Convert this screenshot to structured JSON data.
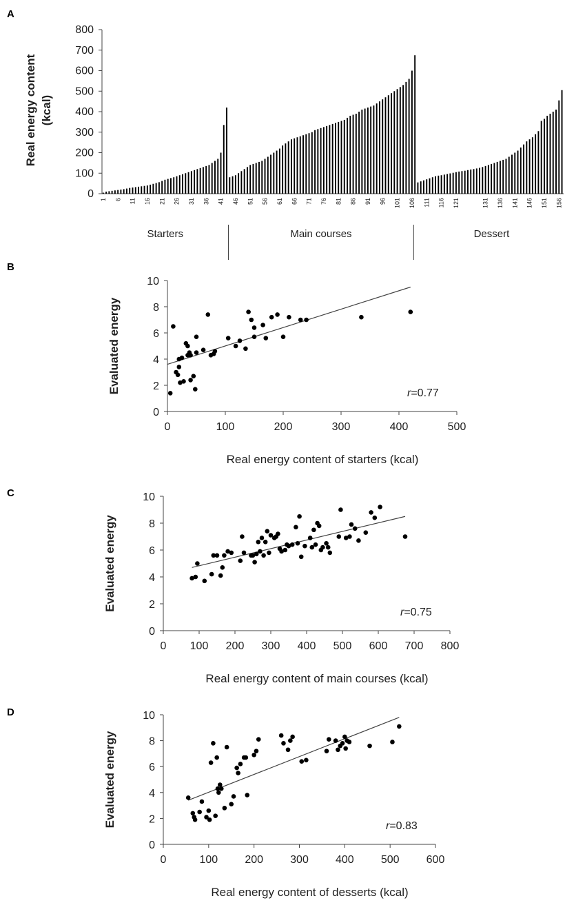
{
  "chart_data": [
    {
      "panel": "A",
      "type": "bar",
      "ylabel_line1": "Real energy content",
      "ylabel_line2": "(kcal)",
      "ylim": [
        0,
        800
      ],
      "yticks": [
        0,
        100,
        200,
        300,
        400,
        500,
        600,
        700,
        800
      ],
      "xtick_labels": [
        "1",
        "6",
        "11",
        "16",
        "21",
        "26",
        "31",
        "36",
        "41",
        "46",
        "51",
        "56",
        "61",
        "66",
        "71",
        "76",
        "81",
        "86",
        "91",
        "96",
        "101",
        "106",
        "111",
        "116",
        "121",
        "131",
        "136",
        "141",
        "146",
        "151",
        "156"
      ],
      "groups": [
        {
          "label": "Starters",
          "start": 1,
          "end": 43
        },
        {
          "label": "Main courses",
          "start": 44,
          "end": 106
        },
        {
          "label": "Dessert",
          "start": 107,
          "end": 159
        }
      ],
      "values": [
        5,
        10,
        12,
        14,
        16,
        18,
        20,
        22,
        25,
        28,
        30,
        32,
        34,
        36,
        38,
        40,
        44,
        48,
        52,
        56,
        62,
        68,
        72,
        76,
        80,
        85,
        90,
        95,
        100,
        105,
        110,
        115,
        120,
        125,
        130,
        135,
        140,
        150,
        160,
        170,
        200,
        335,
        420,
        80,
        85,
        90,
        100,
        110,
        120,
        130,
        140,
        145,
        150,
        155,
        160,
        170,
        180,
        190,
        200,
        210,
        220,
        235,
        245,
        255,
        265,
        270,
        275,
        280,
        285,
        290,
        295,
        300,
        310,
        315,
        320,
        325,
        330,
        335,
        340,
        345,
        350,
        355,
        360,
        370,
        380,
        385,
        390,
        400,
        410,
        415,
        420,
        425,
        430,
        440,
        450,
        460,
        470,
        480,
        490,
        500,
        510,
        520,
        530,
        545,
        560,
        600,
        675,
        55,
        60,
        65,
        70,
        75,
        80,
        85,
        88,
        90,
        93,
        96,
        99,
        102,
        105,
        108,
        110,
        112,
        115,
        118,
        120,
        123,
        126,
        130,
        135,
        140,
        145,
        150,
        155,
        160,
        165,
        170,
        180,
        190,
        200,
        210,
        225,
        240,
        255,
        265,
        275,
        290,
        305,
        355,
        365,
        380,
        390,
        400,
        410,
        455,
        505
      ]
    },
    {
      "panel": "B",
      "type": "scatter",
      "xlabel": "Real energy content of starters (kcal)",
      "ylabel": "Evaluated energy",
      "xlim": [
        0,
        500
      ],
      "ylim": [
        0,
        10
      ],
      "xticks": [
        0,
        100,
        200,
        300,
        400,
        500
      ],
      "yticks": [
        0,
        2,
        4,
        6,
        8,
        10
      ],
      "r_prefix": "r",
      "r_value": "=0.77",
      "trend": {
        "x": [
          0,
          420
        ],
        "y": [
          3.6,
          9.5
        ]
      },
      "points": [
        [
          5,
          1.4
        ],
        [
          10,
          6.5
        ],
        [
          15,
          3.0
        ],
        [
          18,
          2.8
        ],
        [
          20,
          4.0
        ],
        [
          20,
          3.4
        ],
        [
          22,
          2.2
        ],
        [
          25,
          4.1
        ],
        [
          28,
          2.3
        ],
        [
          32,
          5.2
        ],
        [
          35,
          5.0
        ],
        [
          35,
          4.3
        ],
        [
          38,
          4.5
        ],
        [
          40,
          4.3
        ],
        [
          40,
          2.4
        ],
        [
          45,
          2.7
        ],
        [
          48,
          1.7
        ],
        [
          50,
          5.7
        ],
        [
          50,
          4.5
        ],
        [
          62,
          4.7
        ],
        [
          70,
          7.4
        ],
        [
          75,
          4.3
        ],
        [
          80,
          4.4
        ],
        [
          82,
          4.6
        ],
        [
          105,
          5.6
        ],
        [
          118,
          5.0
        ],
        [
          125,
          5.4
        ],
        [
          135,
          4.8
        ],
        [
          140,
          7.6
        ],
        [
          145,
          7.0
        ],
        [
          150,
          6.4
        ],
        [
          150,
          5.7
        ],
        [
          165,
          6.6
        ],
        [
          170,
          5.6
        ],
        [
          180,
          7.2
        ],
        [
          190,
          7.4
        ],
        [
          200,
          5.7
        ],
        [
          210,
          7.2
        ],
        [
          230,
          7.0
        ],
        [
          240,
          7.0
        ],
        [
          335,
          7.2
        ],
        [
          420,
          7.6
        ]
      ]
    },
    {
      "panel": "C",
      "type": "scatter",
      "xlabel": "Real energy content of main courses (kcal)",
      "ylabel": "Evaluated energy",
      "xlim": [
        0,
        800
      ],
      "ylim": [
        0,
        10
      ],
      "xticks": [
        0,
        100,
        200,
        300,
        400,
        500,
        600,
        700,
        800
      ],
      "yticks": [
        0,
        2,
        4,
        6,
        8,
        10
      ],
      "r_prefix": "r",
      "r_value": "=0.75",
      "trend": {
        "x": [
          80,
          675
        ],
        "y": [
          4.7,
          8.5
        ]
      },
      "points": [
        [
          80,
          3.9
        ],
        [
          90,
          4.0
        ],
        [
          95,
          5.0
        ],
        [
          115,
          3.7
        ],
        [
          135,
          4.2
        ],
        [
          140,
          5.6
        ],
        [
          150,
          5.6
        ],
        [
          160,
          4.1
        ],
        [
          165,
          4.7
        ],
        [
          170,
          5.6
        ],
        [
          180,
          5.9
        ],
        [
          190,
          5.8
        ],
        [
          215,
          5.2
        ],
        [
          220,
          7.0
        ],
        [
          225,
          5.8
        ],
        [
          245,
          5.6
        ],
        [
          250,
          5.6
        ],
        [
          255,
          5.1
        ],
        [
          260,
          5.7
        ],
        [
          265,
          6.6
        ],
        [
          270,
          5.9
        ],
        [
          275,
          6.9
        ],
        [
          280,
          5.6
        ],
        [
          285,
          6.6
        ],
        [
          290,
          7.4
        ],
        [
          295,
          5.8
        ],
        [
          300,
          7.1
        ],
        [
          310,
          6.9
        ],
        [
          315,
          7.0
        ],
        [
          320,
          7.2
        ],
        [
          325,
          6.1
        ],
        [
          330,
          5.9
        ],
        [
          340,
          6.0
        ],
        [
          345,
          6.4
        ],
        [
          350,
          6.3
        ],
        [
          360,
          6.4
        ],
        [
          370,
          7.7
        ],
        [
          375,
          6.5
        ],
        [
          380,
          8.5
        ],
        [
          385,
          5.5
        ],
        [
          395,
          6.3
        ],
        [
          410,
          6.9
        ],
        [
          415,
          6.2
        ],
        [
          420,
          7.5
        ],
        [
          425,
          6.4
        ],
        [
          430,
          8.0
        ],
        [
          435,
          7.8
        ],
        [
          440,
          6.0
        ],
        [
          445,
          6.2
        ],
        [
          455,
          6.5
        ],
        [
          460,
          6.2
        ],
        [
          465,
          5.8
        ],
        [
          490,
          7.0
        ],
        [
          495,
          9.0
        ],
        [
          510,
          6.9
        ],
        [
          520,
          7.0
        ],
        [
          525,
          7.9
        ],
        [
          535,
          7.6
        ],
        [
          545,
          6.7
        ],
        [
          565,
          7.3
        ],
        [
          580,
          8.8
        ],
        [
          590,
          8.4
        ],
        [
          605,
          9.2
        ],
        [
          675,
          7.0
        ]
      ]
    },
    {
      "panel": "D",
      "type": "scatter",
      "xlabel": "Real energy content of desserts  (kcal)",
      "ylabel": "Evaluated energy",
      "xlim": [
        0,
        600
      ],
      "ylim": [
        0,
        10
      ],
      "xticks": [
        0,
        100,
        200,
        300,
        400,
        500,
        600
      ],
      "yticks": [
        0,
        2,
        4,
        6,
        8,
        10
      ],
      "r_prefix": "r",
      "r_value": "=0.83",
      "trend": {
        "x": [
          55,
          520
        ],
        "y": [
          3.4,
          9.8
        ]
      },
      "points": [
        [
          55,
          3.6
        ],
        [
          65,
          2.4
        ],
        [
          68,
          2.1
        ],
        [
          70,
          1.9
        ],
        [
          80,
          2.5
        ],
        [
          85,
          3.3
        ],
        [
          95,
          2.1
        ],
        [
          100,
          2.6
        ],
        [
          102,
          1.9
        ],
        [
          105,
          6.3
        ],
        [
          110,
          7.8
        ],
        [
          115,
          2.2
        ],
        [
          118,
          6.7
        ],
        [
          120,
          4.3
        ],
        [
          122,
          4.0
        ],
        [
          125,
          4.6
        ],
        [
          128,
          4.3
        ],
        [
          135,
          2.8
        ],
        [
          140,
          7.5
        ],
        [
          150,
          3.1
        ],
        [
          155,
          3.7
        ],
        [
          162,
          5.9
        ],
        [
          165,
          5.5
        ],
        [
          170,
          6.2
        ],
        [
          178,
          6.7
        ],
        [
          182,
          6.7
        ],
        [
          185,
          3.8
        ],
        [
          200,
          6.9
        ],
        [
          205,
          7.2
        ],
        [
          210,
          8.1
        ],
        [
          260,
          8.4
        ],
        [
          265,
          7.8
        ],
        [
          275,
          7.3
        ],
        [
          280,
          8.0
        ],
        [
          285,
          8.3
        ],
        [
          305,
          6.4
        ],
        [
          315,
          6.5
        ],
        [
          360,
          7.2
        ],
        [
          365,
          8.1
        ],
        [
          380,
          8.0
        ],
        [
          385,
          7.3
        ],
        [
          390,
          7.6
        ],
        [
          395,
          7.8
        ],
        [
          400,
          8.3
        ],
        [
          402,
          7.4
        ],
        [
          405,
          8.0
        ],
        [
          410,
          7.9
        ],
        [
          455,
          7.6
        ],
        [
          505,
          7.9
        ],
        [
          520,
          9.1
        ]
      ]
    }
  ]
}
